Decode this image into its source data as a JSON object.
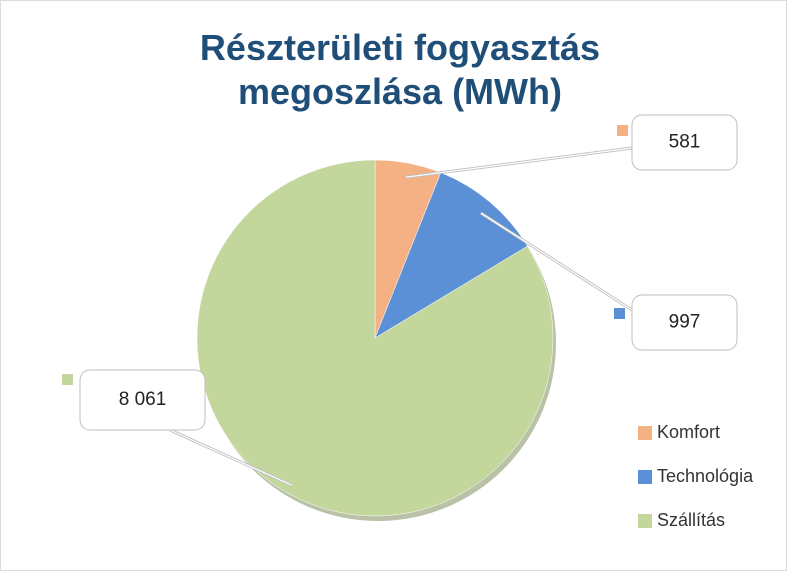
{
  "chart_data": {
    "type": "pie",
    "title": "Részterületi fogyasztás megoszlása (MWh)",
    "categories": [
      "Komfort",
      "Technológia",
      "Szállítás"
    ],
    "values": [
      581,
      997,
      8061
    ],
    "value_labels": [
      "581",
      "997",
      "8 061"
    ],
    "colors": [
      "#f4b183",
      "#5b8fd6",
      "#c3d69b"
    ],
    "legend": "right"
  }
}
